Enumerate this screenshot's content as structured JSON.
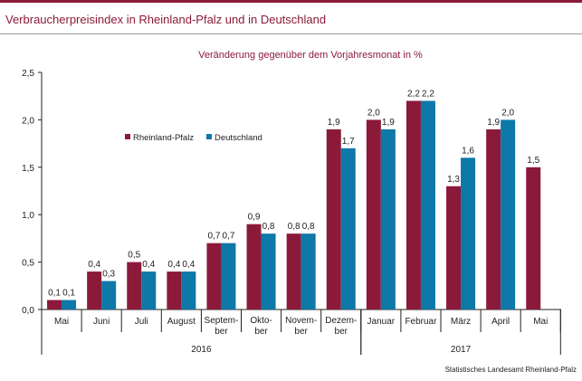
{
  "title": "Verbraucherpreisindex in Rheinland-Pfalz und in Deutschland",
  "source": "Statistisches Landesamt Rheinland-Pfalz",
  "chart_data": {
    "type": "bar",
    "subtitle": "Veränderung gegenüber dem Vorjahresmonat in %",
    "categories": [
      [
        "Mai"
      ],
      [
        "Juni"
      ],
      [
        "Juli"
      ],
      [
        "August"
      ],
      [
        "Septem-",
        "ber"
      ],
      [
        "Okto-",
        "ber"
      ],
      [
        "Novem-",
        "ber"
      ],
      [
        "Dezem-",
        "ber"
      ],
      [
        "Januar"
      ],
      [
        "Februar"
      ],
      [
        "März"
      ],
      [
        "April"
      ],
      [
        "Mai"
      ]
    ],
    "years": [
      {
        "label": "2016",
        "from": 0,
        "to": 7
      },
      {
        "label": "2017",
        "from": 8,
        "to": 12
      }
    ],
    "series": [
      {
        "name": "Rheinland-Pfalz",
        "color": "#8b1a3a",
        "values": [
          0.1,
          0.4,
          0.5,
          0.4,
          0.7,
          0.9,
          0.8,
          1.9,
          2.0,
          2.2,
          1.3,
          1.9,
          1.5
        ],
        "labels": [
          "0,1",
          "0,4",
          "0,5",
          "0,4",
          "0,7",
          "0,9",
          "0,8",
          "1,9",
          "2,0",
          "2,2",
          "1,3",
          "1,9",
          "1,5"
        ]
      },
      {
        "name": "Deutschland",
        "color": "#0e78a8",
        "values": [
          0.1,
          0.3,
          0.4,
          0.4,
          0.7,
          0.8,
          0.8,
          1.7,
          1.9,
          2.2,
          1.6,
          2.0,
          null
        ],
        "labels": [
          "0,1",
          "0,3",
          "0,4",
          "0,4",
          "0,7",
          "0,8",
          "0,8",
          "1,7",
          "1,9",
          "2,2",
          "1,6",
          "2,0",
          ""
        ]
      }
    ],
    "ylim": [
      0,
      2.5
    ],
    "yticks": [
      0,
      0.5,
      1.0,
      1.5,
      2.0,
      2.5
    ],
    "ytick_labels": [
      "0,0",
      "0,5",
      "1,0",
      "1,5",
      "2,0",
      "2,5"
    ],
    "legend_position": "upper-left inside plot",
    "grid": false
  }
}
